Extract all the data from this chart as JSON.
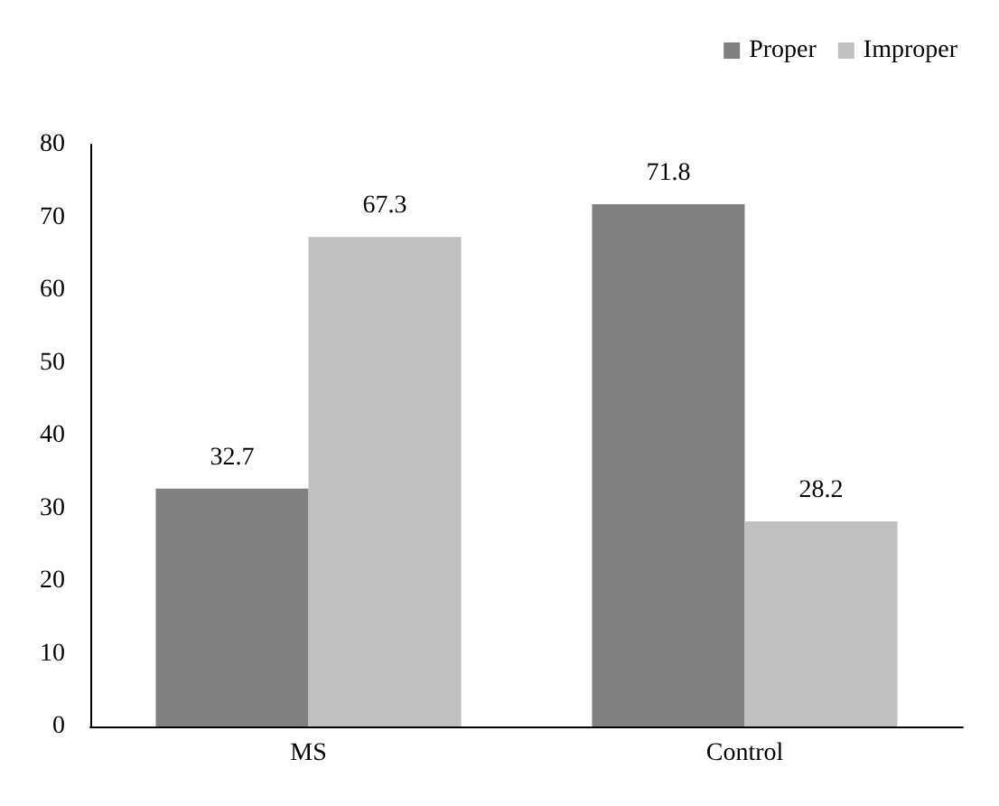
{
  "chart_data": {
    "type": "bar",
    "categories": [
      "MS",
      "Control"
    ],
    "series": [
      {
        "name": "Proper",
        "color": "#808080",
        "values": [
          32.7,
          71.8
        ]
      },
      {
        "name": "Improper",
        "color": "#c0c0c0",
        "values": [
          67.3,
          28.2
        ]
      }
    ],
    "ylim": [
      0,
      80
    ],
    "yticks": [
      0,
      10,
      20,
      30,
      40,
      50,
      60,
      70,
      80
    ],
    "grid": false,
    "legend": "top right",
    "data_labels": true
  }
}
